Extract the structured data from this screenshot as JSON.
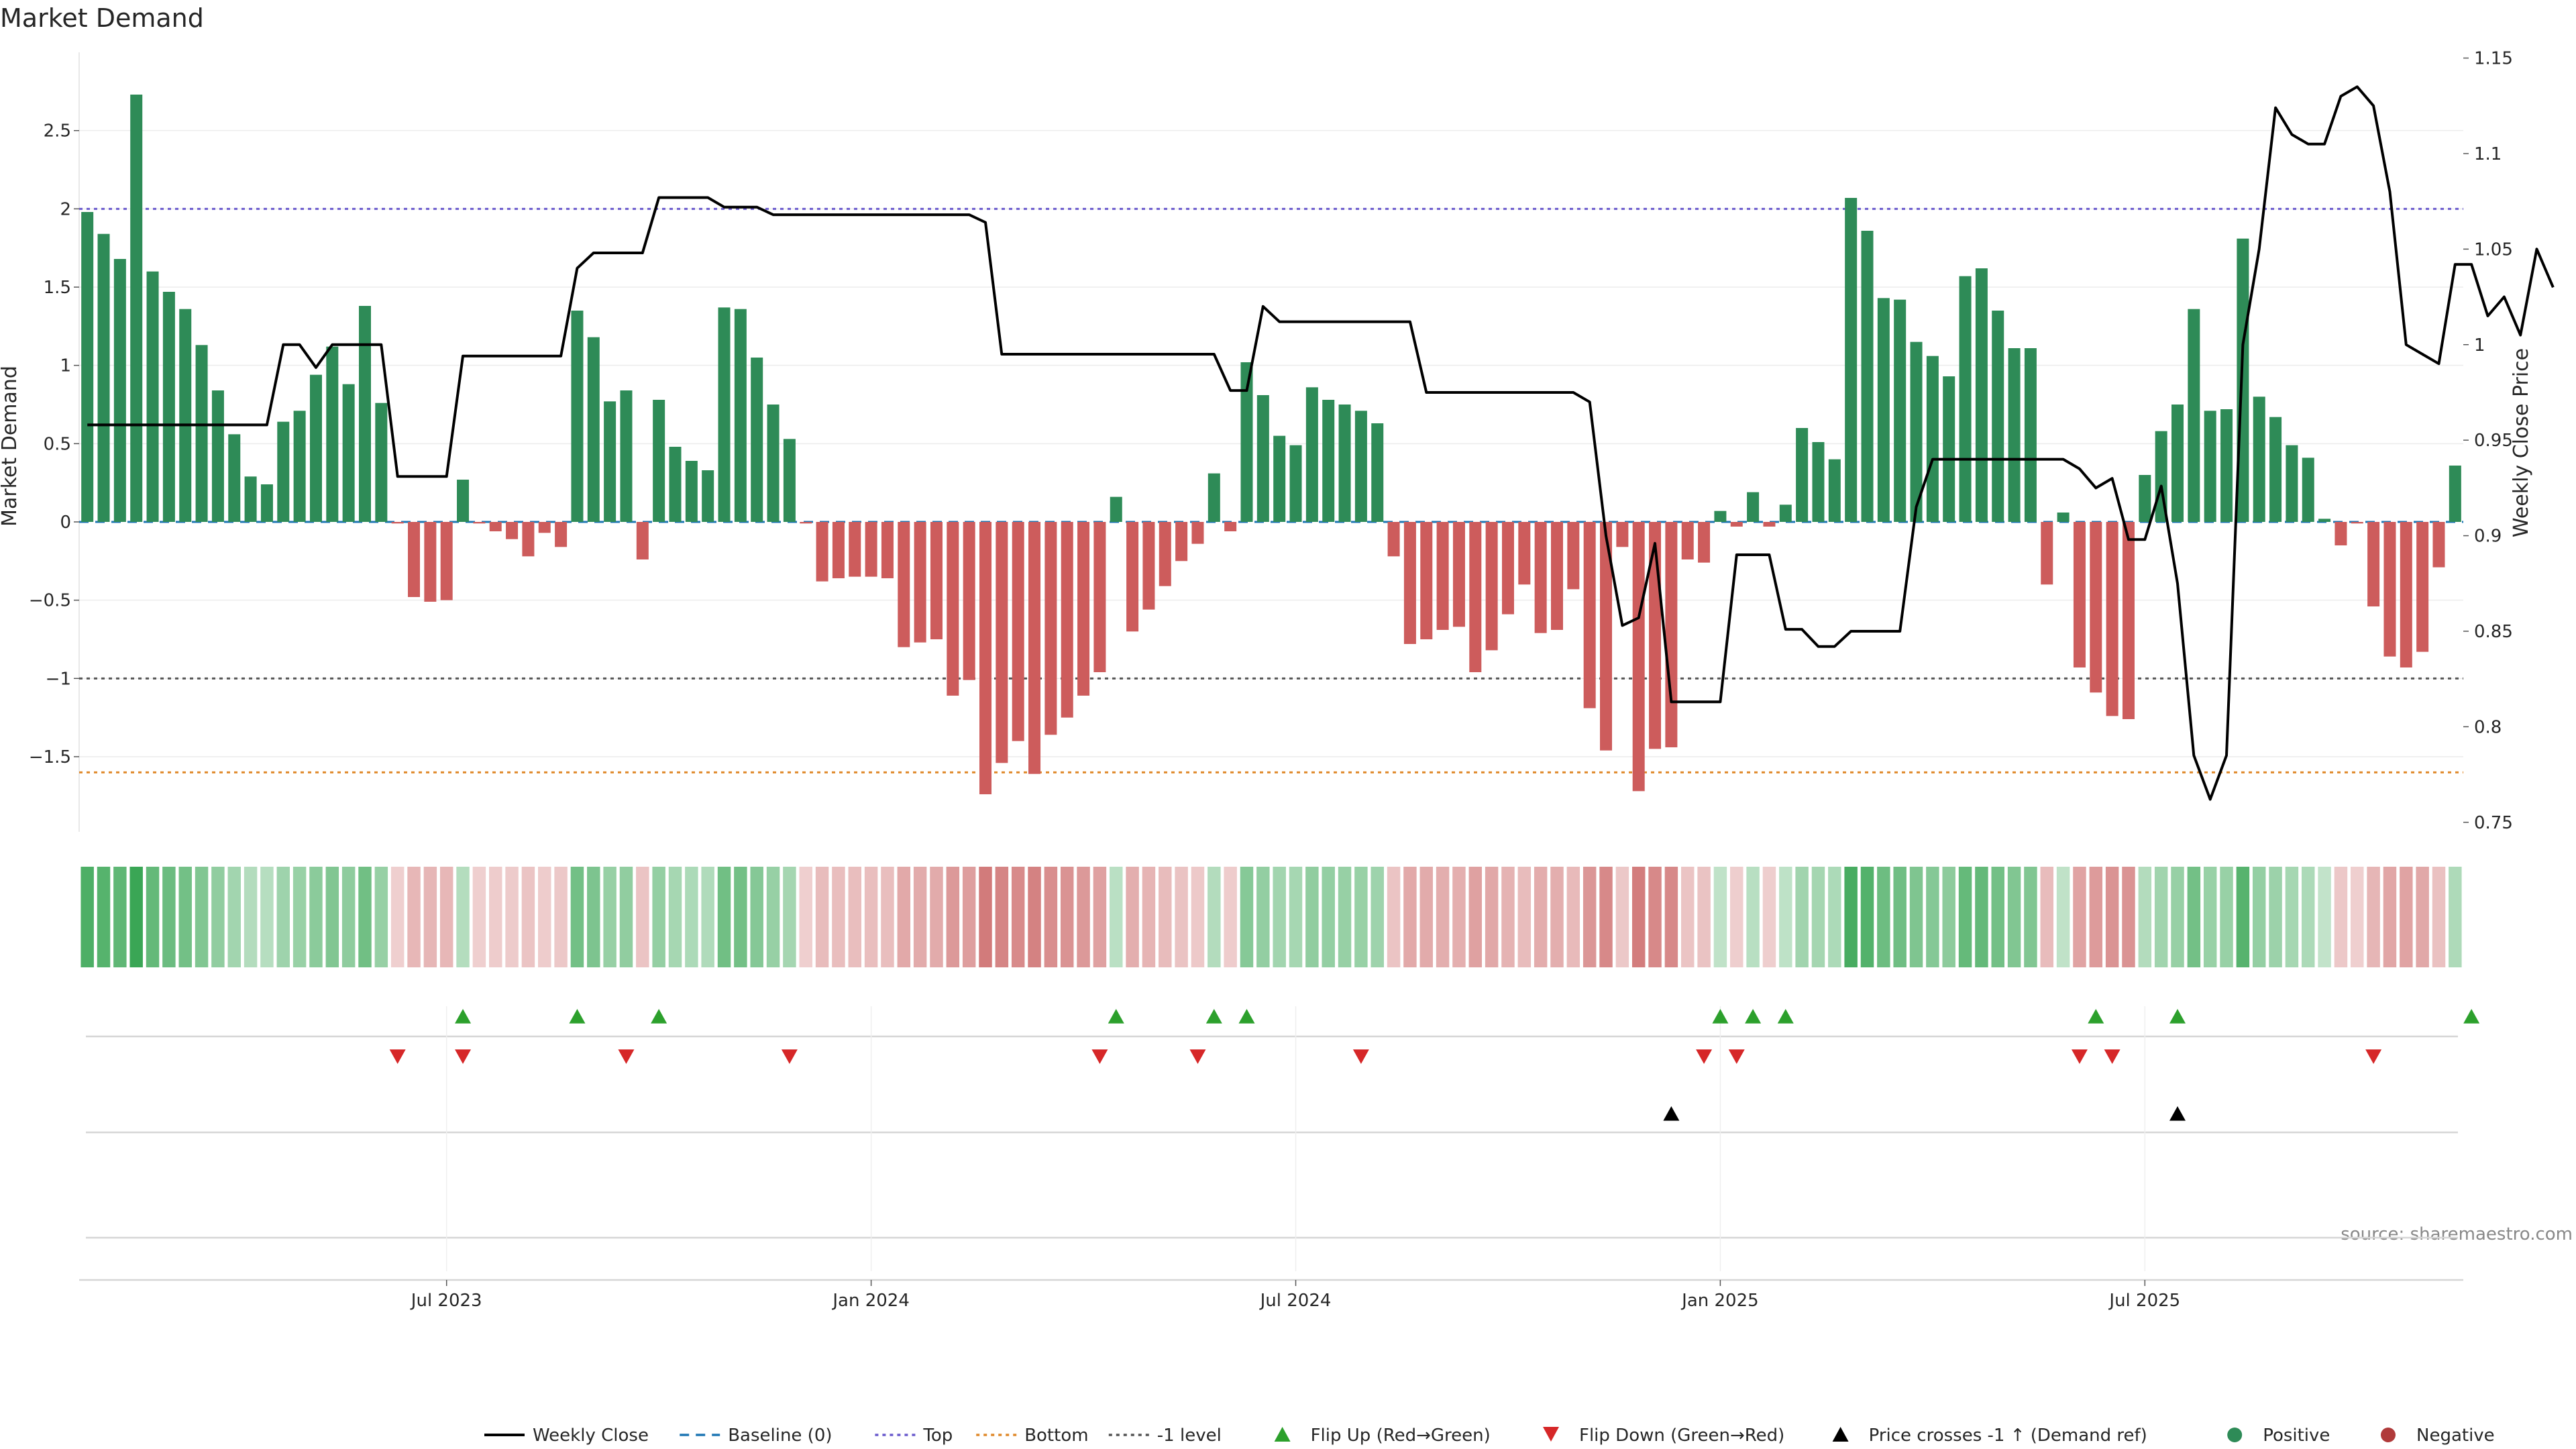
{
  "chart_data": {
    "type": "bar",
    "title": "Market Demand",
    "ylabel": "Market Demand",
    "y2label": "Weekly Close Price",
    "source": "source: sharemaestro.com",
    "ylim": [
      -1.98,
      3.0
    ],
    "y2lim": [
      0.745,
      1.153
    ],
    "yticks": [
      2.5,
      2,
      1.5,
      1,
      0.5,
      0,
      -0.5,
      -1,
      -1.5
    ],
    "ytick_labels": [
      "2.5",
      "2",
      "1.5",
      "1",
      "0.5",
      "0",
      "−0.5",
      "−1",
      "−1.5"
    ],
    "y2ticks": [
      1.15,
      1.1,
      1.05,
      1,
      0.95,
      0.9,
      0.85,
      0.8,
      0.75
    ],
    "y2tick_labels": [
      "1.15",
      "1.1",
      "1.05",
      "1",
      "0.95",
      "0.9",
      "0.85",
      "0.8",
      "0.75"
    ],
    "xticks": [
      22,
      48,
      74,
      100,
      126
    ],
    "xtick_labels": [
      "Jul 2023",
      "Jan 2024",
      "Jul 2024",
      "Jan 2025",
      "Jul 2025"
    ],
    "reference_lines": [
      {
        "name": "Top",
        "value": 2.0,
        "color": "#6a5acd"
      },
      {
        "name": "Bottom",
        "value": -1.6,
        "color": "#e08a2c"
      },
      {
        "name": "-1 level",
        "value": -1.0,
        "color": "#555555"
      },
      {
        "name": "Baseline (0)",
        "value": 0,
        "color": "#1f77b4"
      }
    ],
    "demand": [
      1.98,
      1.84,
      1.68,
      2.73,
      1.6,
      1.47,
      1.36,
      1.13,
      0.84,
      0.56,
      0.29,
      0.24,
      0.64,
      0.71,
      0.94,
      1.12,
      0.88,
      1.38,
      0.76,
      -0.01,
      -0.48,
      -0.51,
      -0.5,
      0.27,
      -0.01,
      -0.06,
      -0.11,
      -0.22,
      -0.07,
      -0.16,
      1.35,
      1.18,
      0.77,
      0.84,
      -0.24,
      0.78,
      0.48,
      0.39,
      0.33,
      1.37,
      1.36,
      1.05,
      0.75,
      0.53,
      -0.01,
      -0.38,
      -0.36,
      -0.35,
      -0.35,
      -0.36,
      -0.8,
      -0.77,
      -0.75,
      -1.11,
      -1.01,
      -1.74,
      -1.54,
      -1.4,
      -1.61,
      -1.36,
      -1.25,
      -1.11,
      -0.96,
      0.16,
      -0.7,
      -0.56,
      -0.41,
      -0.25,
      -0.14,
      0.31,
      -0.06,
      1.02,
      0.81,
      0.55,
      0.49,
      0.86,
      0.78,
      0.75,
      0.71,
      0.63,
      -0.22,
      -0.78,
      -0.75,
      -0.69,
      -0.67,
      -0.96,
      -0.82,
      -0.59,
      -0.4,
      -0.71,
      -0.69,
      -0.43,
      -1.19,
      -1.46,
      -0.16,
      -1.72,
      -1.45,
      -1.44,
      -0.24,
      -0.26,
      0.07,
      -0.03,
      0.19,
      -0.03,
      0.11,
      0.6,
      0.51,
      0.4,
      2.07,
      1.86,
      1.43,
      1.42,
      1.15,
      1.06,
      0.93,
      1.57,
      1.62,
      1.35,
      1.11,
      1.11,
      -0.4,
      0.06,
      -0.93,
      -1.09,
      -1.24,
      -1.26,
      0.3,
      0.58,
      0.75,
      1.36,
      0.71,
      0.72,
      1.81,
      0.8,
      0.67,
      0.49,
      0.41,
      0.02,
      -0.15,
      -0.01,
      -0.54,
      -0.86,
      -0.93,
      -0.83,
      -0.29,
      0.36
    ],
    "close": [
      0.958,
      0.958,
      0.958,
      0.958,
      0.958,
      0.958,
      0.958,
      0.958,
      0.958,
      0.958,
      0.958,
      0.958,
      1.0,
      1.0,
      0.988,
      1.0,
      1.0,
      1.0,
      1.0,
      0.931,
      0.931,
      0.931,
      0.931,
      0.994,
      0.994,
      0.994,
      0.994,
      0.994,
      0.994,
      0.994,
      1.04,
      1.048,
      1.048,
      1.048,
      1.048,
      1.077,
      1.077,
      1.077,
      1.077,
      1.072,
      1.072,
      1.072,
      1.068,
      1.068,
      1.068,
      1.068,
      1.068,
      1.068,
      1.068,
      1.068,
      1.068,
      1.068,
      1.068,
      1.068,
      1.068,
      1.064,
      0.995,
      0.995,
      0.995,
      0.995,
      0.995,
      0.995,
      0.995,
      0.995,
      0.995,
      0.995,
      0.995,
      0.995,
      0.995,
      0.995,
      0.976,
      0.976,
      1.02,
      1.012,
      1.012,
      1.012,
      1.012,
      1.012,
      1.012,
      1.012,
      1.012,
      1.012,
      0.975,
      0.975,
      0.975,
      0.975,
      0.975,
      0.975,
      0.975,
      0.975,
      0.975,
      0.975,
      0.97,
      0.9,
      0.853,
      0.857,
      0.896,
      0.813,
      0.813,
      0.813,
      0.813,
      0.89,
      0.89,
      0.89,
      0.851,
      0.851,
      0.842,
      0.842,
      0.85,
      0.85,
      0.85,
      0.85,
      0.915,
      0.94,
      0.94,
      0.94,
      0.94,
      0.94,
      0.94,
      0.94,
      0.94,
      0.94,
      0.935,
      0.925,
      0.93,
      0.898,
      0.898,
      0.926,
      0.875,
      0.785,
      0.762,
      0.785,
      1.0,
      1.05,
      1.124,
      1.11,
      1.105,
      1.105,
      1.13,
      1.135,
      1.125,
      1.08,
      1.0,
      0.995,
      0.99,
      1.042,
      1.042,
      1.015,
      1.025,
      1.005,
      1.05,
      1.03
    ],
    "flip_up": [
      23,
      30,
      35,
      63,
      69,
      71,
      100,
      102,
      104,
      123,
      128,
      146
    ],
    "flip_down": [
      19,
      23,
      33,
      43,
      62,
      68,
      78,
      99,
      101,
      122,
      124,
      140
    ],
    "price_crosses": [
      97,
      128
    ],
    "legend": [
      {
        "label": "Weekly Close",
        "kind": "line",
        "color": "#000000"
      },
      {
        "label": "Baseline (0)",
        "kind": "dash",
        "color": "#1f77b4"
      },
      {
        "label": "Top",
        "kind": "dot",
        "color": "#6a5acd"
      },
      {
        "label": "Bottom",
        "kind": "dot",
        "color": "#e08a2c"
      },
      {
        "label": "-1 level",
        "kind": "dot",
        "color": "#555555"
      },
      {
        "label": "Flip Up (Red→Green)",
        "kind": "tri-up",
        "color": "#2ca02c"
      },
      {
        "label": "Flip Down (Green→Red)",
        "kind": "tri-down",
        "color": "#d62728"
      },
      {
        "label": "Price crosses -1 ↑ (Demand ref)",
        "kind": "tri-up",
        "color": "#000000"
      },
      {
        "label": "Positive",
        "kind": "circle",
        "color": "#2e8b57"
      },
      {
        "label": "Negative",
        "kind": "circle",
        "color": "#b03a3a"
      }
    ],
    "colors": {
      "positive": "#2e8b57",
      "negative": "#cd5c5c",
      "heat_positive": "#3aa655",
      "heat_negative": "#c96060",
      "line": "#000000"
    }
  }
}
